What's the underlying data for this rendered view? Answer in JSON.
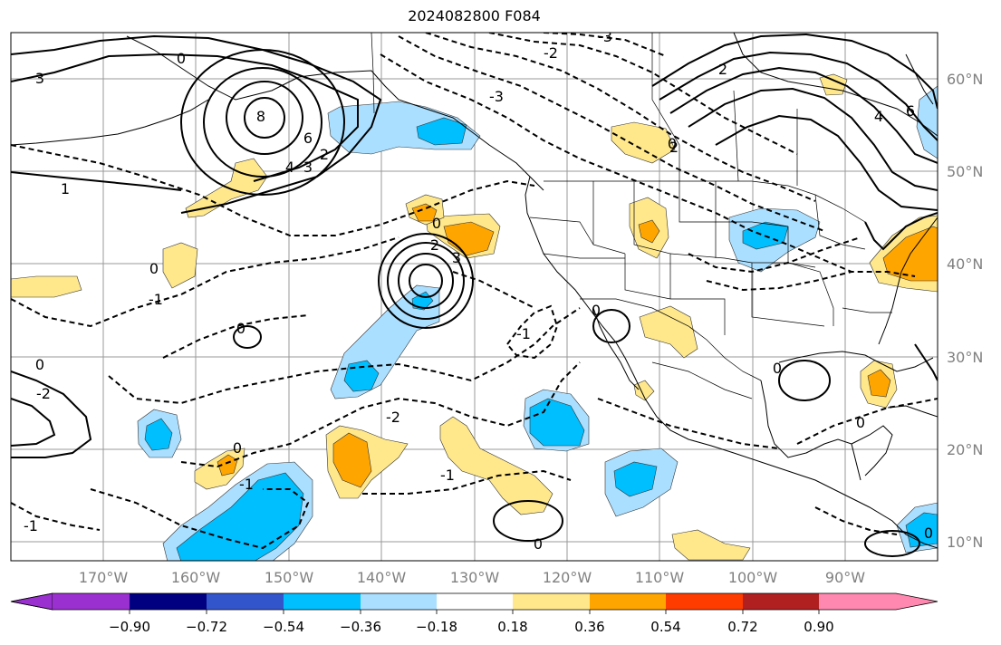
{
  "title": "2024082800 F084",
  "map": {
    "lat_labels": [
      "60°N",
      "50°N",
      "40°N",
      "30°N",
      "20°N",
      "10°N"
    ],
    "lon_labels": [
      "170°W",
      "160°W",
      "150°W",
      "140°W",
      "130°W",
      "120°W",
      "110°W",
      "100°W",
      "90°W"
    ],
    "contour_labels": [
      "-3",
      "-2",
      "-1",
      "0",
      "1",
      "2",
      "3",
      "4",
      "6",
      "8"
    ]
  },
  "colorbar": {
    "tick_labels": [
      "−0.90",
      "−0.72",
      "−0.54",
      "−0.36",
      "−0.18",
      "0.18",
      "0.36",
      "0.54",
      "0.72",
      "0.90"
    ],
    "colors": [
      "#9b30d0",
      "#000080",
      "#3355cc",
      "#00bfff",
      "#abdfff",
      "#ffffff",
      "#ffe88c",
      "#ffa500",
      "#ff3c00",
      "#b02020",
      "#ff88b0",
      "#ff88b0"
    ]
  },
  "colors": {
    "light_blue": "#abdfff",
    "blue": "#00bfff",
    "light_yellow": "#ffe88c",
    "orange": "#ffa500"
  }
}
